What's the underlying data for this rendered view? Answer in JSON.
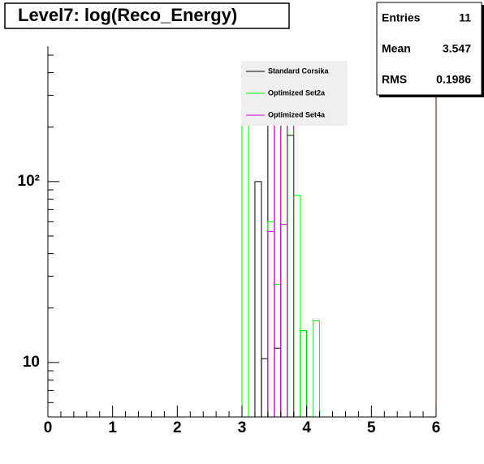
{
  "chart_data": {
    "type": "histogram",
    "title": "Level7:  log(Reco_Energy)",
    "bins": [
      3.0,
      3.1,
      3.2,
      3.3,
      3.4,
      3.5,
      3.6,
      3.7,
      3.8,
      3.9,
      4.0,
      4.1,
      4.2,
      4.3
    ],
    "series": [
      {
        "name": "Standard Corsika",
        "color": "#000000",
        "values": [
          0,
          0,
          100,
          10.5,
          300,
          12,
          300,
          180,
          0,
          15,
          0,
          0,
          0
        ]
      },
      {
        "name": "Optimized Set2a",
        "color": "#00ee00",
        "values": [
          300,
          0,
          0,
          0,
          60,
          27,
          300,
          300,
          84,
          15,
          0,
          17,
          0
        ]
      },
      {
        "name": "Optimized Set4a",
        "color": "#cc00cc",
        "values": [
          0,
          0,
          0,
          0,
          53,
          300,
          58,
          300,
          0,
          0,
          0,
          0,
          0
        ]
      }
    ],
    "xlim": [
      0,
      6
    ],
    "xticks": [
      0,
      1,
      2,
      3,
      4,
      5,
      6
    ],
    "ylim": [
      5,
      560
    ],
    "log_y": true,
    "yticks": [
      10,
      {
        "value": 100,
        "label": "10²"
      }
    ],
    "stats": [
      {
        "label": "Entries",
        "value": 11
      },
      {
        "label": "Mean",
        "value": 3.547
      },
      {
        "label": "RMS",
        "value": 0.1986
      }
    ]
  }
}
